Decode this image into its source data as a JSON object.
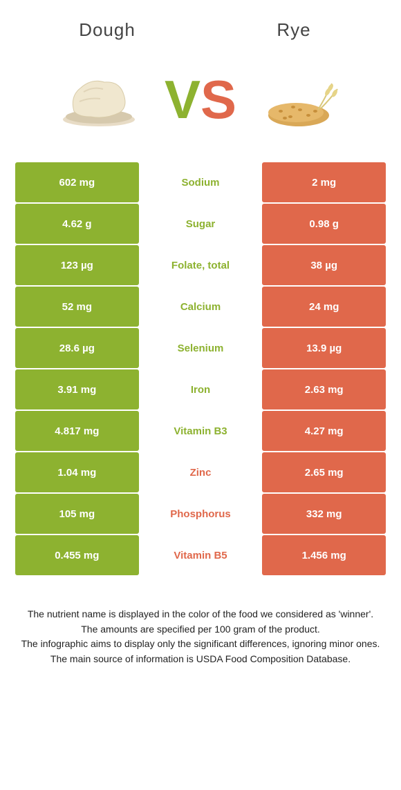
{
  "colors": {
    "green": "#8db230",
    "orange": "#e0684b",
    "mid_bg": "#ffffff",
    "text_dark": "#333333"
  },
  "header": {
    "left": "Dough",
    "right": "Rye"
  },
  "vs": {
    "v": "V",
    "s": "S"
  },
  "rows": [
    {
      "left": "602 mg",
      "label": "Sodium",
      "right": "2 mg",
      "winner": "left"
    },
    {
      "left": "4.62 g",
      "label": "Sugar",
      "right": "0.98 g",
      "winner": "left"
    },
    {
      "left": "123 µg",
      "label": "Folate, total",
      "right": "38 µg",
      "winner": "left"
    },
    {
      "left": "52 mg",
      "label": "Calcium",
      "right": "24 mg",
      "winner": "left"
    },
    {
      "left": "28.6 µg",
      "label": "Selenium",
      "right": "13.9 µg",
      "winner": "left"
    },
    {
      "left": "3.91 mg",
      "label": "Iron",
      "right": "2.63 mg",
      "winner": "left"
    },
    {
      "left": "4.817 mg",
      "label": "Vitamin B3",
      "right": "4.27 mg",
      "winner": "left"
    },
    {
      "left": "1.04 mg",
      "label": "Zinc",
      "right": "2.65 mg",
      "winner": "right"
    },
    {
      "left": "105 mg",
      "label": "Phosphorus",
      "right": "332 mg",
      "winner": "right"
    },
    {
      "left": "0.455 mg",
      "label": "Vitamin B5",
      "right": "1.456 mg",
      "winner": "right"
    }
  ],
  "footnote": {
    "l1": "The nutrient name is displayed in the color of the food we considered as 'winner'.",
    "l2": "The amounts are specified per 100 gram of the product.",
    "l3": "The infographic aims to display only the significant differences, ignoring minor ones.",
    "l4": "The main source of information is USDA Food Composition Database."
  }
}
